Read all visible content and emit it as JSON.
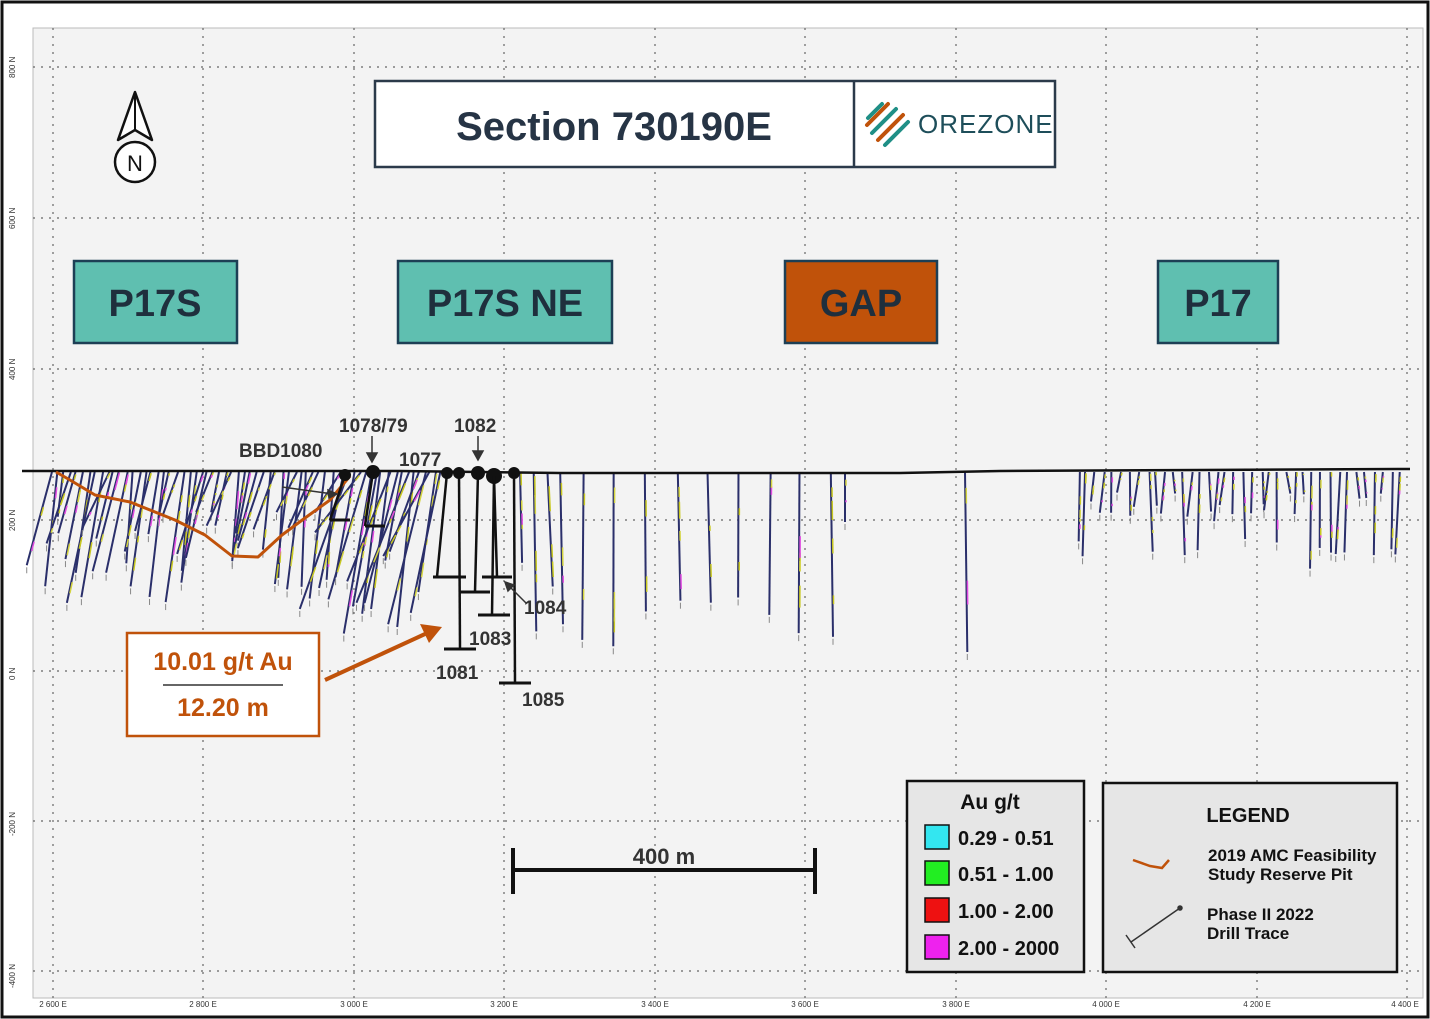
{
  "title": "Section 730190E",
  "logo_text": "OREZONE",
  "north_label": "N",
  "zones": [
    {
      "label": "P17S",
      "color": "#5fbfb0"
    },
    {
      "label": "P17S NE",
      "color": "#5fbfb0"
    },
    {
      "label": "GAP",
      "color": "#c0520a"
    },
    {
      "label": "P17",
      "color": "#5fbfb0"
    }
  ],
  "axes": {
    "y_ticks": [
      "800 N",
      "600 N",
      "400 N",
      "200 N",
      "0 N",
      "-200 N",
      "-400 N"
    ],
    "x_ticks": [
      "2 600 E",
      "2 800 E",
      "3 000 E",
      "3 200 E",
      "3 400 E",
      "3 600 E",
      "3 800 E",
      "4 000 E",
      "4 200 E",
      "4 400 E"
    ]
  },
  "drill_labels": [
    "BBD1080",
    "1078/79",
    "1077",
    "1082",
    "1084",
    "1083",
    "1081",
    "1085"
  ],
  "callout": {
    "grade": "10.01 g/t Au",
    "length": "12.20 m"
  },
  "scale_bar": "400 m",
  "au_legend": {
    "title": "Au g/t",
    "items": [
      {
        "label": "0.29 - 0.51",
        "color": "#33e6f0"
      },
      {
        "label": "0.51 - 1.00",
        "color": "#22ee22"
      },
      {
        "label": "1.00 - 2.00",
        "color": "#ee1111"
      },
      {
        "label": "2.00 - 2000",
        "color": "#ee22ee"
      }
    ]
  },
  "legend": {
    "title": "LEGEND",
    "pit_line1": "2019 AMC Feasibility",
    "pit_line2": "Study Reserve Pit",
    "drill_line1": "Phase II 2022",
    "drill_line2": "Drill Trace",
    "pit_color": "#c0520a"
  }
}
